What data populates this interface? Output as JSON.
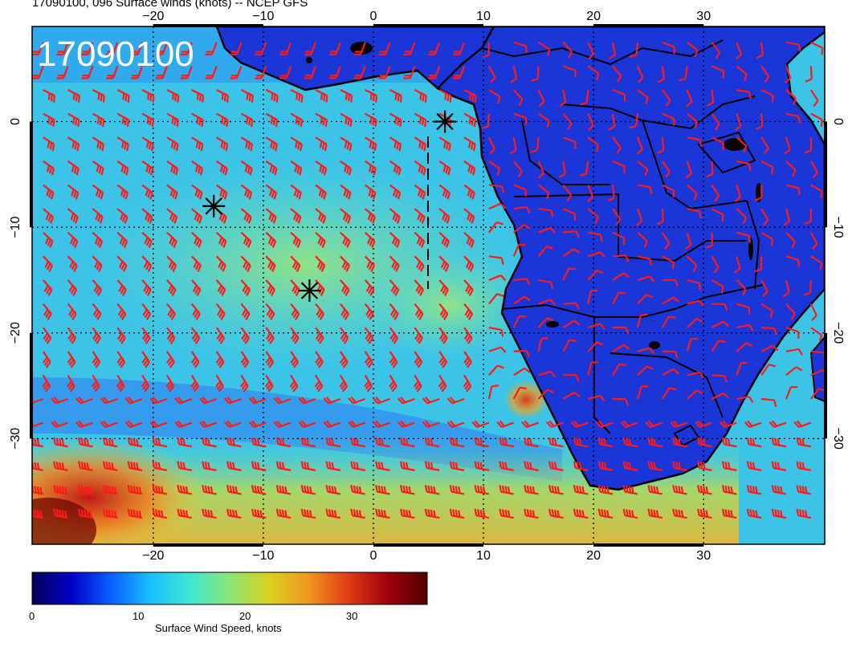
{
  "title": "17090100, 096 Surface winds (knots) -- NCEP GFS",
  "datetime_stamp": "17090100",
  "map": {
    "projection": "lat-lon",
    "lon_range": [
      -31,
      41
    ],
    "lat_range": [
      -40,
      9
    ],
    "grid": "dotted, every 10 degrees",
    "lon_tick_labels": [
      {
        "value": -20,
        "label": "−20"
      },
      {
        "value": -10,
        "label": "−10"
      },
      {
        "value": 0,
        "label": "0"
      },
      {
        "value": 10,
        "label": "10"
      },
      {
        "value": 20,
        "label": "20"
      },
      {
        "value": 30,
        "label": "30"
      }
    ],
    "lat_tick_labels": [
      {
        "value": 0,
        "label": "0"
      },
      {
        "value": -10,
        "label": "−10"
      },
      {
        "value": -20,
        "label": "−20"
      },
      {
        "value": -30,
        "label": "−30"
      }
    ],
    "markers": [
      {
        "symbol": "asterisk",
        "lon": 6.5,
        "lat": 0.0
      },
      {
        "symbol": "asterisk",
        "lon": -14.5,
        "lat": -8.0
      },
      {
        "symbol": "asterisk",
        "lon": -5.8,
        "lat": -16.0
      }
    ],
    "wind_barb_color": "#ff1a1a",
    "land_color": "#1a2fd0",
    "ocean_field_colors": [
      "#1e6cf0",
      "#3fd0e6",
      "#8ae07a",
      "#f2d23a",
      "#f58a1e",
      "#d8201a"
    ]
  },
  "colorbar": {
    "caption": "Surface Wind Speed, knots",
    "min": 0,
    "max": 37,
    "ticks": [
      {
        "value": 0,
        "label": "0"
      },
      {
        "value": 10,
        "label": "10"
      },
      {
        "value": 20,
        "label": "20"
      },
      {
        "value": 30,
        "label": "30"
      }
    ],
    "colors": [
      "#05005a",
      "#0000c8",
      "#0a5fff",
      "#17c0ff",
      "#3fe6d2",
      "#8ce676",
      "#d8d21e",
      "#f0961e",
      "#e03c14",
      "#a0000a",
      "#500000"
    ]
  }
}
